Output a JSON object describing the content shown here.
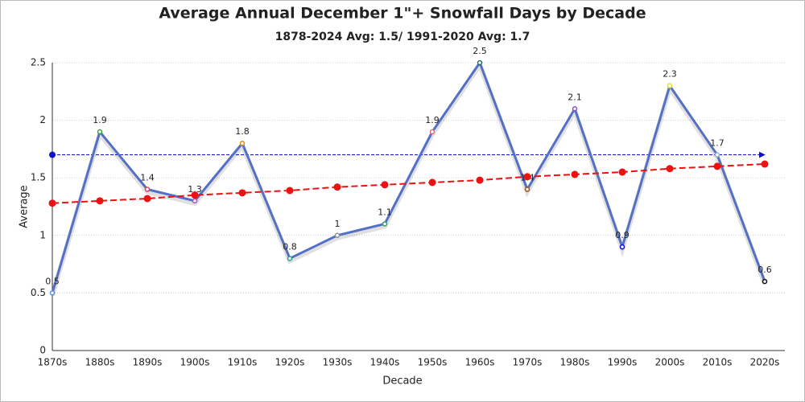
{
  "chart_data": {
    "type": "line",
    "title": "Average Annual December 1\"+ Snowfall Days by Decade",
    "subtitle": "1878-2024 Avg: 1.5/ 1991-2020 Avg: 1.7",
    "x_label": "Decade",
    "y_label": "Average",
    "categories": [
      "1870s",
      "1880s",
      "1890s",
      "1900s",
      "1910s",
      "1920s",
      "1930s",
      "1940s",
      "1950s",
      "1960s",
      "1970s",
      "1980s",
      "1990s",
      "2000s",
      "2010s",
      "2020s"
    ],
    "series": [
      {
        "color": "#5470c6",
        "values": [
          0.5,
          1.9,
          1.4,
          1.3,
          1.8,
          0.8,
          1,
          1.1,
          1.9,
          2.5,
          1.4,
          2.1,
          0.9,
          2.3,
          1.7,
          0.6
        ],
        "marker_colors": [
          "#5a8fd8",
          "#3aa13a",
          "#d94060",
          "#b050d0",
          "#e08a20",
          "#20a090",
          "#909090",
          "#30a060",
          "#e07080",
          "#207050",
          "#a05010",
          "#9050d0",
          "#1010d0",
          "#e0e030",
          "#90b0e0",
          "#111111"
        ],
        "data_labels": true
      },
      {
        "color": "#ee1111",
        "dashed": true,
        "values": [
          1.28,
          1.3,
          1.32,
          1.35,
          1.37,
          1.39,
          1.42,
          1.44,
          1.46,
          1.48,
          1.51,
          1.53,
          1.55,
          1.58,
          1.6,
          1.62
        ]
      }
    ],
    "reference_line": {
      "value": 1.7,
      "color": "#1010cc"
    },
    "ylim": [
      0,
      2.5
    ],
    "yticks": [
      0,
      0.5,
      1,
      1.5,
      2,
      2.5
    ],
    "grid": true
  }
}
